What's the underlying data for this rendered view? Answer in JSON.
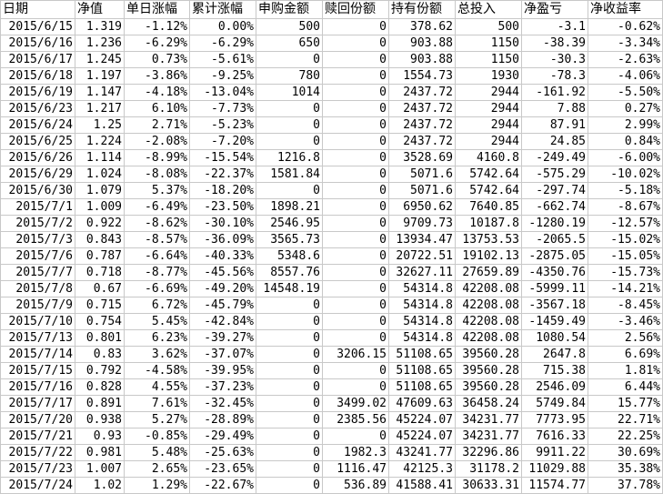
{
  "headers": [
    "日期",
    "净值",
    "单日涨幅",
    "累计涨幅",
    "申购金额",
    "赎回份额",
    "持有份额",
    "总投入",
    "净盈亏",
    "净收益率"
  ],
  "rows": [
    [
      "2015/6/15",
      "1.319",
      "-1.12%",
      "0.00%",
      "500",
      "0",
      "378.62",
      "500",
      "-3.1",
      "-0.62%"
    ],
    [
      "2015/6/16",
      "1.236",
      "-6.29%",
      "-6.29%",
      "650",
      "0",
      "903.88",
      "1150",
      "-38.39",
      "-3.34%"
    ],
    [
      "2015/6/17",
      "1.245",
      "0.73%",
      "-5.61%",
      "0",
      "0",
      "903.88",
      "1150",
      "-30.3",
      "-2.63%"
    ],
    [
      "2015/6/18",
      "1.197",
      "-3.86%",
      "-9.25%",
      "780",
      "0",
      "1554.73",
      "1930",
      "-78.3",
      "-4.06%"
    ],
    [
      "2015/6/19",
      "1.147",
      "-4.18%",
      "-13.04%",
      "1014",
      "0",
      "2437.72",
      "2944",
      "-161.92",
      "-5.50%"
    ],
    [
      "2015/6/23",
      "1.217",
      "6.10%",
      "-7.73%",
      "0",
      "0",
      "2437.72",
      "2944",
      "7.88",
      "0.27%"
    ],
    [
      "2015/6/24",
      "1.25",
      "2.71%",
      "-5.23%",
      "0",
      "0",
      "2437.72",
      "2944",
      "87.91",
      "2.99%"
    ],
    [
      "2015/6/25",
      "1.224",
      "-2.08%",
      "-7.20%",
      "0",
      "0",
      "2437.72",
      "2944",
      "24.85",
      "0.84%"
    ],
    [
      "2015/6/26",
      "1.114",
      "-8.99%",
      "-15.54%",
      "1216.8",
      "0",
      "3528.69",
      "4160.8",
      "-249.49",
      "-6.00%"
    ],
    [
      "2015/6/29",
      "1.024",
      "-8.08%",
      "-22.37%",
      "1581.84",
      "0",
      "5071.6",
      "5742.64",
      "-575.29",
      "-10.02%"
    ],
    [
      "2015/6/30",
      "1.079",
      "5.37%",
      "-18.20%",
      "0",
      "0",
      "5071.6",
      "5742.64",
      "-297.74",
      "-5.18%"
    ],
    [
      "2015/7/1",
      "1.009",
      "-6.49%",
      "-23.50%",
      "1898.21",
      "0",
      "6950.62",
      "7640.85",
      "-662.74",
      "-8.67%"
    ],
    [
      "2015/7/2",
      "0.922",
      "-8.62%",
      "-30.10%",
      "2546.95",
      "0",
      "9709.73",
      "10187.8",
      "-1280.19",
      "-12.57%"
    ],
    [
      "2015/7/3",
      "0.843",
      "-8.57%",
      "-36.09%",
      "3565.73",
      "0",
      "13934.47",
      "13753.53",
      "-2065.5",
      "-15.02%"
    ],
    [
      "2015/7/6",
      "0.787",
      "-6.64%",
      "-40.33%",
      "5348.6",
      "0",
      "20722.51",
      "19102.13",
      "-2875.05",
      "-15.05%"
    ],
    [
      "2015/7/7",
      "0.718",
      "-8.77%",
      "-45.56%",
      "8557.76",
      "0",
      "32627.11",
      "27659.89",
      "-4350.76",
      "-15.73%"
    ],
    [
      "2015/7/8",
      "0.67",
      "-6.69%",
      "-49.20%",
      "14548.19",
      "0",
      "54314.8",
      "42208.08",
      "-5999.11",
      "-14.21%"
    ],
    [
      "2015/7/9",
      "0.715",
      "6.72%",
      "-45.79%",
      "0",
      "0",
      "54314.8",
      "42208.08",
      "-3567.18",
      "-8.45%"
    ],
    [
      "2015/7/10",
      "0.754",
      "5.45%",
      "-42.84%",
      "0",
      "0",
      "54314.8",
      "42208.08",
      "-1459.49",
      "-3.46%"
    ],
    [
      "2015/7/13",
      "0.801",
      "6.23%",
      "-39.27%",
      "0",
      "0",
      "54314.8",
      "42208.08",
      "1080.54",
      "2.56%"
    ],
    [
      "2015/7/14",
      "0.83",
      "3.62%",
      "-37.07%",
      "0",
      "3206.15",
      "51108.65",
      "39560.28",
      "2647.8",
      "6.69%"
    ],
    [
      "2015/7/15",
      "0.792",
      "-4.58%",
      "-39.95%",
      "0",
      "0",
      "51108.65",
      "39560.28",
      "715.38",
      "1.81%"
    ],
    [
      "2015/7/16",
      "0.828",
      "4.55%",
      "-37.23%",
      "0",
      "0",
      "51108.65",
      "39560.28",
      "2546.09",
      "6.44%"
    ],
    [
      "2015/7/17",
      "0.891",
      "7.61%",
      "-32.45%",
      "0",
      "3499.02",
      "47609.63",
      "36458.24",
      "5749.84",
      "15.77%"
    ],
    [
      "2015/7/20",
      "0.938",
      "5.27%",
      "-28.89%",
      "0",
      "2385.56",
      "45224.07",
      "34231.77",
      "7773.95",
      "22.71%"
    ],
    [
      "2015/7/21",
      "0.93",
      "-0.85%",
      "-29.49%",
      "0",
      "0",
      "45224.07",
      "34231.77",
      "7616.33",
      "22.25%"
    ],
    [
      "2015/7/22",
      "0.981",
      "5.48%",
      "-25.63%",
      "0",
      "1982.3",
      "43241.77",
      "32296.86",
      "9911.22",
      "30.69%"
    ],
    [
      "2015/7/23",
      "1.007",
      "2.65%",
      "-23.65%",
      "0",
      "1116.47",
      "42125.3",
      "31178.2",
      "11029.88",
      "35.38%"
    ],
    [
      "2015/7/24",
      "1.02",
      "1.29%",
      "-22.67%",
      "0",
      "536.89",
      "41588.41",
      "30633.31",
      "11574.77",
      "37.78%"
    ]
  ]
}
